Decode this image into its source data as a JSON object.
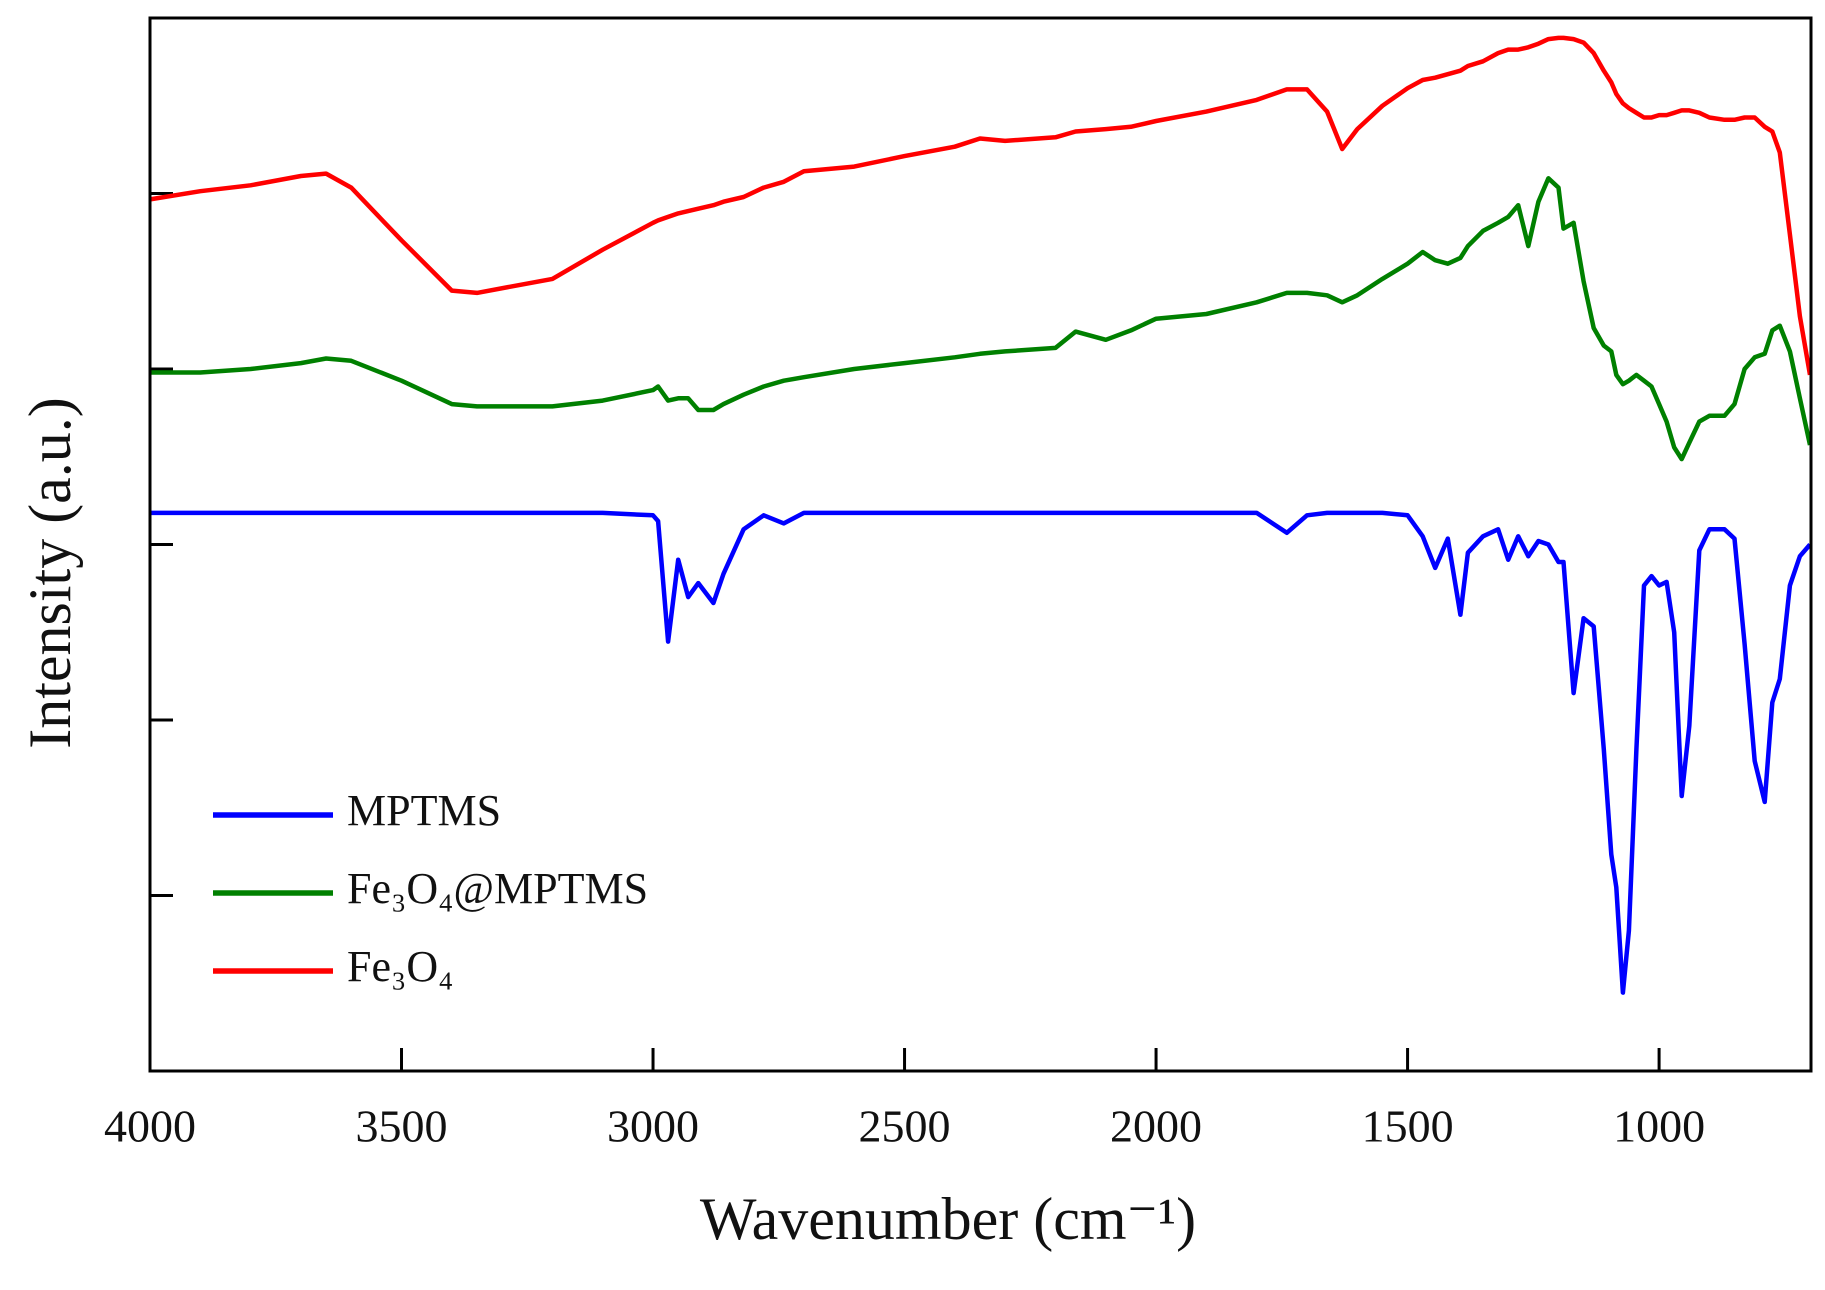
{
  "chart_data": {
    "type": "line",
    "xlabel": "Wavenumber (cm⁻¹)",
    "ylabel": "Intensity (a.u.)",
    "xlim": [
      4000,
      698
    ],
    "xticks": [
      4000,
      3500,
      3000,
      2500,
      2000,
      1500,
      1000
    ],
    "ylim": [
      0,
      900
    ],
    "yticks": [
      150,
      300,
      450,
      600,
      750
    ],
    "legend": "lower left",
    "x": [
      4000,
      3900,
      3800,
      3700,
      3650,
      3600,
      3500,
      3400,
      3350,
      3200,
      3100,
      3000,
      2990,
      2970,
      2950,
      2930,
      2910,
      2880,
      2860,
      2820,
      2780,
      2740,
      2700,
      2600,
      2500,
      2400,
      2350,
      2300,
      2200,
      2160,
      2100,
      2050,
      2000,
      1900,
      1800,
      1740,
      1700,
      1660,
      1630,
      1600,
      1550,
      1500,
      1470,
      1445,
      1420,
      1395,
      1380,
      1350,
      1320,
      1300,
      1280,
      1260,
      1240,
      1220,
      1200,
      1190,
      1170,
      1150,
      1130,
      1110,
      1095,
      1085,
      1072,
      1060,
      1045,
      1030,
      1015,
      1000,
      985,
      970,
      955,
      940,
      920,
      900,
      870,
      850,
      830,
      810,
      790,
      775,
      760,
      740,
      720,
      700
    ],
    "series": [
      {
        "name": "MPTMS",
        "color": "#0000ff",
        "values": [
          477,
          477,
          477,
          477,
          477,
          477,
          477,
          477,
          477,
          477,
          477,
          475,
          470,
          367,
          437,
          405,
          417,
          400,
          425,
          463,
          475,
          468,
          477,
          477,
          477,
          477,
          477,
          477,
          477,
          477,
          477,
          477,
          477,
          477,
          477,
          460,
          475,
          477,
          477,
          477,
          477,
          475,
          457,
          430,
          455,
          390,
          443,
          457,
          463,
          437,
          457,
          440,
          453,
          450,
          435,
          435,
          323,
          387,
          380,
          275,
          185,
          157,
          67,
          120,
          275,
          415,
          423,
          415,
          418,
          375,
          235,
          295,
          445,
          463,
          463,
          455,
          365,
          265,
          230,
          315,
          335,
          415,
          440,
          450
        ]
      },
      {
        "name": "Fe₃O₄@MPTMS",
        "color": "#008000",
        "values": [
          597,
          597,
          600,
          605,
          609,
          607,
          590,
          570,
          568,
          568,
          573,
          582,
          585,
          573,
          575,
          575,
          565,
          565,
          570,
          578,
          585,
          590,
          593,
          600,
          605,
          610,
          613,
          615,
          618,
          632,
          625,
          633,
          643,
          647,
          657,
          665,
          665,
          663,
          657,
          663,
          677,
          690,
          700,
          693,
          690,
          695,
          705,
          718,
          725,
          730,
          740,
          705,
          743,
          763,
          755,
          720,
          725,
          675,
          635,
          620,
          615,
          595,
          587,
          590,
          595,
          590,
          585,
          570,
          555,
          533,
          523,
          537,
          555,
          560,
          560,
          570,
          600,
          610,
          613,
          633,
          637,
          615,
          575,
          535
        ]
      },
      {
        "name": "Fe₃O₄",
        "color": "#ff0000",
        "values": [
          745,
          752,
          757,
          765,
          767,
          755,
          710,
          667,
          665,
          677,
          702,
          725,
          727,
          730,
          733,
          735,
          737,
          740,
          743,
          747,
          755,
          760,
          769,
          773,
          782,
          790,
          797,
          795,
          798,
          803,
          805,
          807,
          812,
          820,
          830,
          839,
          839,
          820,
          788,
          805,
          825,
          840,
          847,
          849,
          852,
          855,
          859,
          863,
          870,
          873,
          873,
          875,
          878,
          882,
          883,
          883,
          882,
          879,
          870,
          855,
          845,
          835,
          827,
          823,
          819,
          815,
          815,
          817,
          817,
          819,
          821,
          821,
          819,
          815,
          813,
          813,
          815,
          815,
          807,
          803,
          785,
          715,
          645,
          595
        ]
      }
    ]
  }
}
